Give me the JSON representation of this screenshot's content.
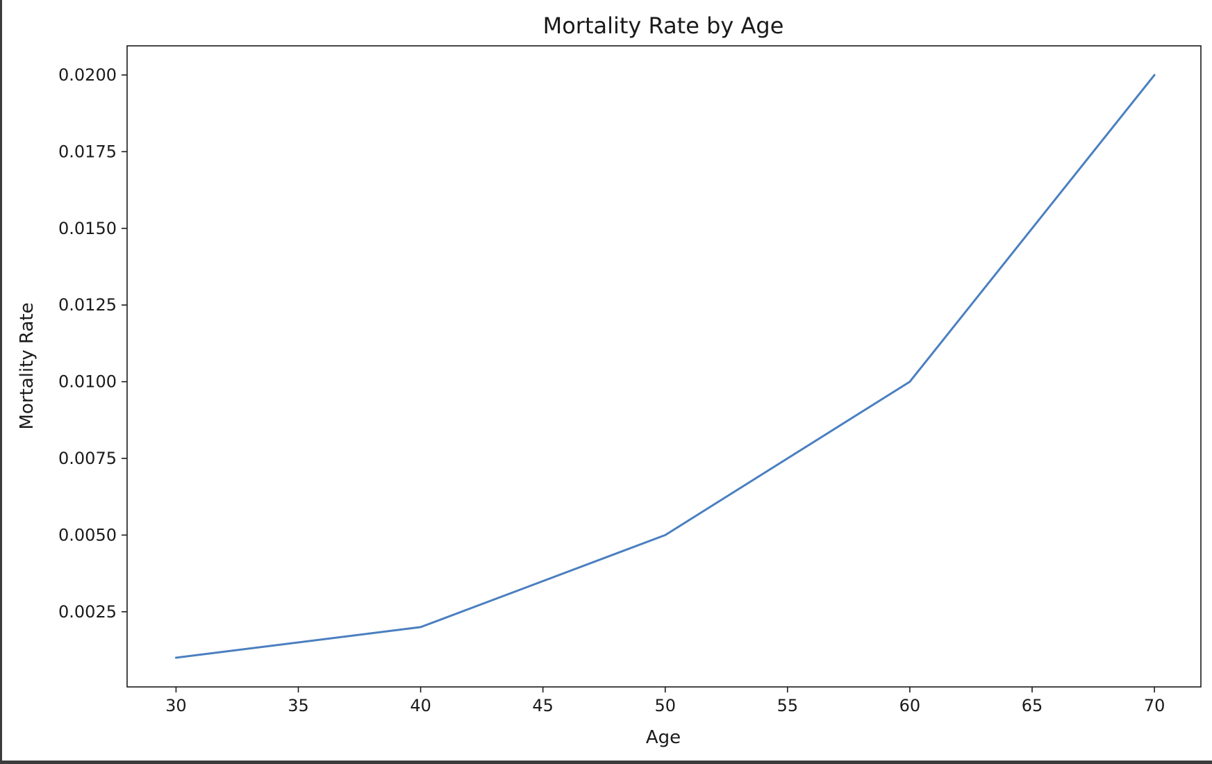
{
  "chart_data": {
    "type": "line",
    "title": "Mortality Rate by Age",
    "xlabel": "Age",
    "ylabel": "Mortality Rate",
    "x": [
      30,
      40,
      50,
      60,
      70
    ],
    "series": [
      {
        "values": [
          0.001,
          0.002,
          0.005,
          0.01,
          0.02
        ],
        "color": "#4a7fc0"
      }
    ],
    "xlim": [
      28,
      71.9
    ],
    "ylim": [
      5e-05,
      0.02095
    ],
    "xticks": [
      30,
      35,
      40,
      45,
      50,
      55,
      60,
      65,
      70
    ],
    "xtick_labels": [
      "30",
      "35",
      "40",
      "45",
      "50",
      "55",
      "60",
      "65",
      "70"
    ],
    "yticks": [
      0.0025,
      0.005,
      0.0075,
      0.01,
      0.0125,
      0.015,
      0.0175,
      0.02
    ],
    "ytick_labels": [
      "0.0025",
      "0.0050",
      "0.0075",
      "0.0100",
      "0.0125",
      "0.0150",
      "0.0175",
      "0.0200"
    ],
    "grid": false,
    "legend": null
  }
}
